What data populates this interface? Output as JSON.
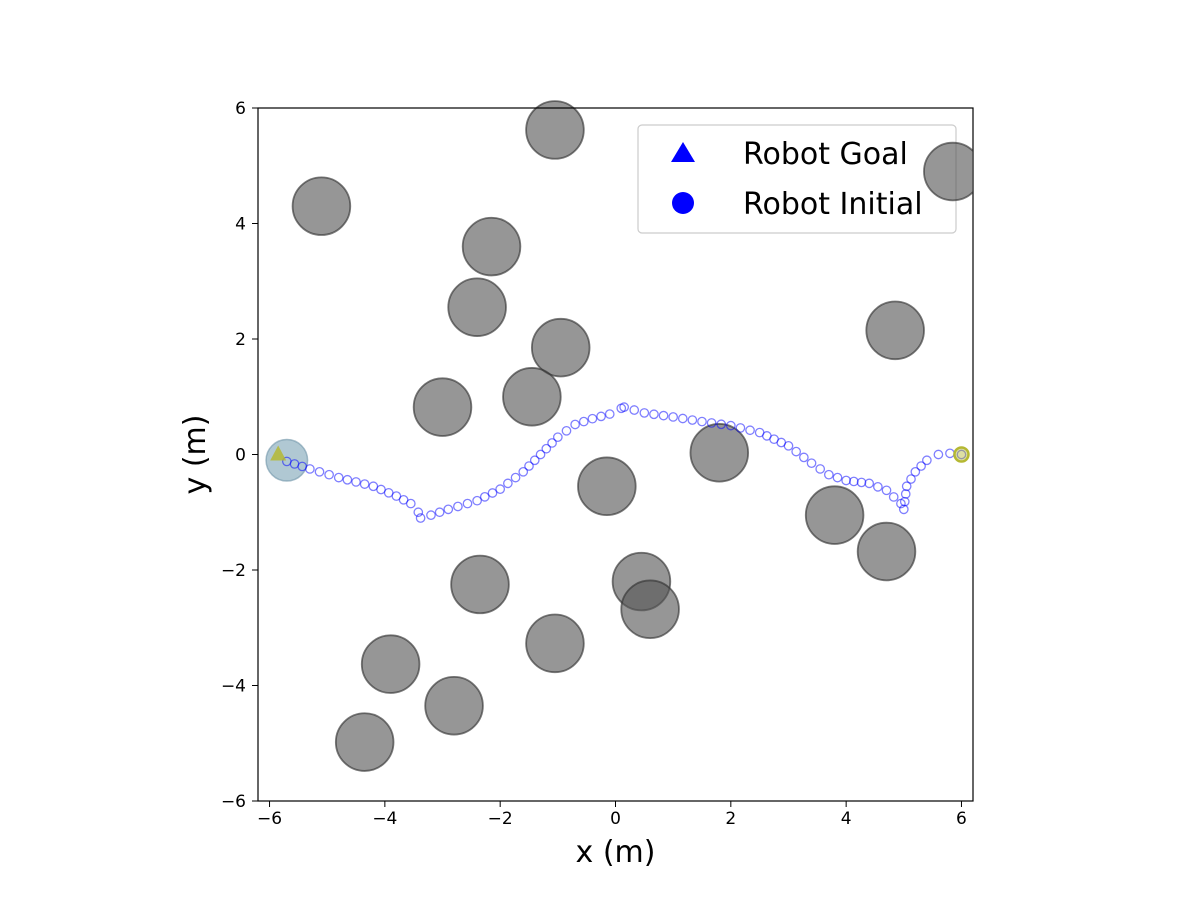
{
  "chart_data": {
    "type": "scatter",
    "title": "",
    "xlabel": "x (m)",
    "ylabel": "y (m)",
    "xlim": [
      -6.2,
      6.2
    ],
    "ylim": [
      -6,
      6
    ],
    "xticks": [
      -6,
      -4,
      -2,
      0,
      2,
      4,
      6
    ],
    "yticks": [
      -6,
      -4,
      -2,
      0,
      2,
      4,
      6
    ],
    "xtick_labels": [
      "−6",
      "−4",
      "−2",
      "0",
      "2",
      "4",
      "6"
    ],
    "ytick_labels": [
      "−6",
      "−4",
      "−2",
      "0",
      "2",
      "4",
      "6"
    ],
    "grid": false,
    "legend": {
      "placement": "top-right",
      "entries": [
        {
          "label": "Robot Goal",
          "marker": "triangle",
          "color": "#0000ff"
        },
        {
          "label": "Robot Initial",
          "marker": "circle",
          "color": "#0000ff"
        }
      ]
    },
    "obstacle_radius": 0.5,
    "obstacles": [
      {
        "x": -1.05,
        "y": 5.62
      },
      {
        "x": -5.1,
        "y": 4.3
      },
      {
        "x": -2.15,
        "y": 3.6
      },
      {
        "x": -2.4,
        "y": 2.55
      },
      {
        "x": -0.95,
        "y": 1.85
      },
      {
        "x": -1.45,
        "y": 1.0
      },
      {
        "x": -3.0,
        "y": 0.82
      },
      {
        "x": 4.85,
        "y": 2.15
      },
      {
        "x": 1.8,
        "y": 0.03
      },
      {
        "x": -0.15,
        "y": -0.55
      },
      {
        "x": 3.8,
        "y": -1.05
      },
      {
        "x": 4.7,
        "y": -1.68
      },
      {
        "x": -2.35,
        "y": -2.25
      },
      {
        "x": 0.45,
        "y": -2.2
      },
      {
        "x": 0.6,
        "y": -2.68
      },
      {
        "x": -1.05,
        "y": -3.27
      },
      {
        "x": -3.9,
        "y": -3.63
      },
      {
        "x": -2.8,
        "y": -4.35
      },
      {
        "x": -4.35,
        "y": -4.98
      }
    ],
    "faded_obstacle": {
      "x": 5.85,
      "y": 4.9
    },
    "robot": {
      "x": -5.7,
      "y": -0.1,
      "color": "#8fb0c0"
    },
    "goal": {
      "x": -5.85,
      "y": 0.0,
      "color": "#b5b832"
    },
    "initial": {
      "x": 6.0,
      "y": 0.0,
      "color": "#b5b832"
    },
    "trajectory_color": "#0000ff",
    "trajectory": [
      [
        -5.7,
        -0.12
      ],
      [
        -5.3,
        -0.25
      ],
      [
        -4.8,
        -0.4
      ],
      [
        -4.2,
        -0.55
      ],
      [
        -3.8,
        -0.72
      ],
      [
        -3.55,
        -0.85
      ],
      [
        -3.42,
        -1.0
      ],
      [
        -3.38,
        -1.1
      ],
      [
        -3.2,
        -1.05
      ],
      [
        -2.9,
        -0.95
      ],
      [
        -2.4,
        -0.8
      ],
      [
        -2.0,
        -0.6
      ],
      [
        -1.6,
        -0.3
      ],
      [
        -1.3,
        0.0
      ],
      [
        -1.0,
        0.3
      ],
      [
        -0.7,
        0.52
      ],
      [
        -0.4,
        0.62
      ],
      [
        -0.1,
        0.7
      ],
      [
        0.1,
        0.8
      ],
      [
        0.15,
        0.82
      ],
      [
        0.5,
        0.72
      ],
      [
        1.0,
        0.65
      ],
      [
        1.5,
        0.57
      ],
      [
        2.0,
        0.5
      ],
      [
        2.5,
        0.38
      ],
      [
        3.0,
        0.15
      ],
      [
        3.4,
        -0.15
      ],
      [
        3.7,
        -0.35
      ],
      [
        4.0,
        -0.45
      ],
      [
        4.4,
        -0.5
      ],
      [
        4.7,
        -0.62
      ],
      [
        4.95,
        -0.85
      ],
      [
        5.0,
        -0.95
      ],
      [
        5.05,
        -0.55
      ],
      [
        5.2,
        -0.3
      ],
      [
        5.4,
        -0.1
      ],
      [
        5.6,
        0.0
      ],
      [
        5.8,
        0.02
      ],
      [
        6.0,
        0.0
      ]
    ]
  }
}
